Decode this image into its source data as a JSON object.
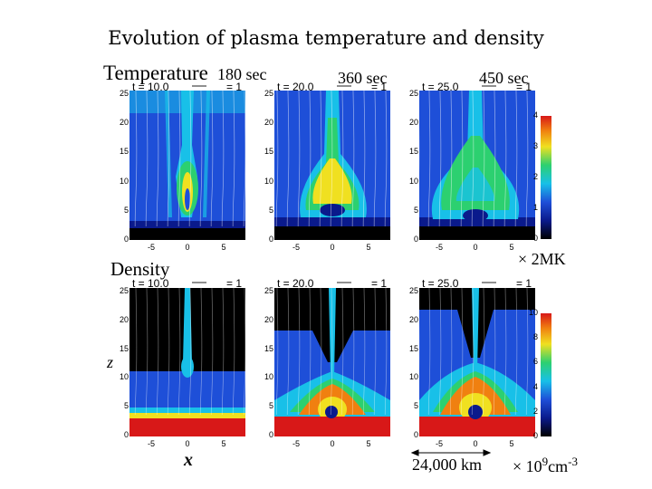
{
  "title": "Evolution of plasma temperature and density",
  "rows": {
    "temperature_label": "Temperature",
    "density_label": "Density"
  },
  "columns": [
    {
      "time_label": "180 sec",
      "t_text": "t = 10.0",
      "vec_text": "= 1"
    },
    {
      "time_label": "360 sec",
      "t_text": "t = 20.0",
      "vec_text": "= 1"
    },
    {
      "time_label": "450 sec",
      "t_text": "t = 25.0",
      "vec_text": "= 1"
    }
  ],
  "axes": {
    "xlabel": "x",
    "zlabel": "z",
    "x_ticks": [
      "-5",
      "0",
      "5"
    ],
    "z_ticks": [
      "25",
      "20",
      "15",
      "10",
      "5",
      "0"
    ]
  },
  "colorbars": {
    "temperature": {
      "ticks": [
        "4",
        "3",
        "2",
        "1",
        "0"
      ],
      "unit": "× 2MK"
    },
    "density": {
      "ticks": [
        "10",
        "8",
        "6",
        "4",
        "2",
        "0"
      ],
      "unit_prefix": "× 10",
      "unit_exp": "9",
      "unit_suffix": "cm",
      "unit_sup2": "-3"
    }
  },
  "scale_bar": "24,000 km",
  "colors": {
    "black": "#000000",
    "dark_blue": "#0a1a8c",
    "blue": "#1e4fd8",
    "cyan": "#18c0e8",
    "green": "#2cd070",
    "yellow": "#f0e020",
    "orange": "#f08010",
    "red": "#d81818"
  }
}
